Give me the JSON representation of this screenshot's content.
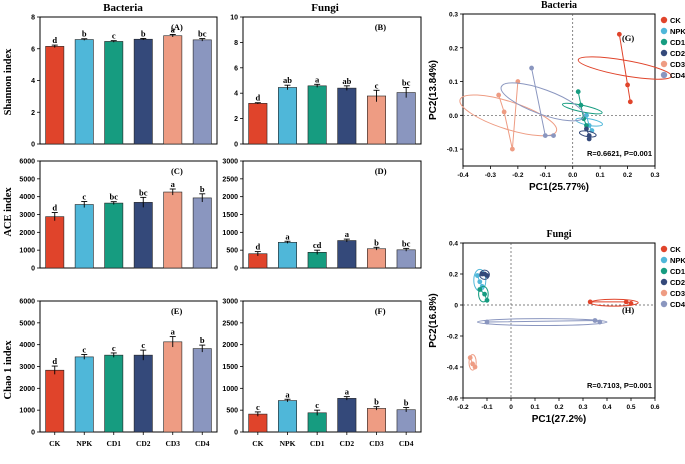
{
  "colors": {
    "CK": "#e0442b",
    "NPK": "#4fb7d9",
    "CD1": "#169c80",
    "CD2": "#34497a",
    "CD3": "#ee9c83",
    "CD4": "#8a96bf"
  },
  "column_titles": {
    "bacteria": "Bacteria",
    "fungi": "Fungi"
  },
  "row_labels": {
    "shannon": "Shannon index",
    "ace": "ACE index",
    "chao": "Chao 1 index"
  },
  "categories": [
    "CK",
    "NPK",
    "CD1",
    "CD2",
    "CD3",
    "CD4"
  ],
  "chart_data": [
    {
      "id": "A",
      "type": "bar",
      "panel_label": "(A)",
      "group": "Bacteria",
      "metric": "Shannon index",
      "categories": [
        "CK",
        "NPK",
        "CD1",
        "CD2",
        "CD3",
        "CD4"
      ],
      "values": [
        6.15,
        6.58,
        6.46,
        6.6,
        6.82,
        6.56
      ],
      "errors": [
        0.08,
        0.05,
        0.05,
        0.05,
        0.08,
        0.08
      ],
      "letters": [
        "d",
        "b",
        "c",
        "b",
        "a",
        "bc"
      ],
      "ylim": [
        0,
        8
      ],
      "yticks": [
        "0",
        "2",
        "4",
        "6",
        "8"
      ]
    },
    {
      "id": "B",
      "type": "bar",
      "panel_label": "(B)",
      "group": "Fungi",
      "metric": "Shannon index",
      "categories": [
        "CK",
        "NPK",
        "CD1",
        "CD2",
        "CD3",
        "CD4"
      ],
      "values": [
        3.2,
        4.45,
        4.58,
        4.4,
        3.78,
        4.05
      ],
      "errors": [
        0.05,
        0.18,
        0.12,
        0.18,
        0.45,
        0.4
      ],
      "letters": [
        "d",
        "ab",
        "a",
        "ab",
        "c",
        "bc"
      ],
      "ylim": [
        0,
        10
      ],
      "yticks": [
        "0",
        "2",
        "4",
        "6",
        "8",
        "10"
      ]
    },
    {
      "id": "C",
      "type": "bar",
      "panel_label": "(C)",
      "group": "Bacteria",
      "metric": "ACE index",
      "categories": [
        "CK",
        "NPK",
        "CD1",
        "CD2",
        "CD3",
        "CD4"
      ],
      "values": [
        2880,
        3560,
        3640,
        3680,
        4260,
        3930
      ],
      "errors": [
        230,
        170,
        80,
        280,
        170,
        230
      ],
      "letters": [
        "d",
        "c",
        "bc",
        "bc",
        "a",
        "b"
      ],
      "ylim": [
        0,
        6000
      ],
      "yticks": [
        "0",
        "1000",
        "2000",
        "3000",
        "4000",
        "5000",
        "6000"
      ]
    },
    {
      "id": "D",
      "type": "bar",
      "panel_label": "(D)",
      "group": "Fungi",
      "metric": "ACE index",
      "categories": [
        "CK",
        "NPK",
        "CD1",
        "CD2",
        "CD3",
        "CD4"
      ],
      "values": [
        400,
        720,
        440,
        770,
        540,
        510
      ],
      "errors": [
        60,
        30,
        60,
        40,
        40,
        40
      ],
      "letters": [
        "d",
        "a",
        "cd",
        "a",
        "b",
        "bc"
      ],
      "ylim": [
        0,
        3000
      ],
      "yticks": [
        "0",
        "500",
        "1000",
        "1500",
        "2000",
        "2500",
        "3000"
      ]
    },
    {
      "id": "E",
      "type": "bar",
      "panel_label": "(E)",
      "group": "Bacteria",
      "metric": "Chao 1 index",
      "categories": [
        "CK",
        "NPK",
        "CD1",
        "CD2",
        "CD3",
        "CD4"
      ],
      "values": [
        2830,
        3440,
        3520,
        3520,
        4130,
        3820
      ],
      "errors": [
        190,
        110,
        100,
        230,
        240,
        160
      ],
      "letters": [
        "d",
        "c",
        "c",
        "c",
        "a",
        "b"
      ],
      "ylim": [
        0,
        6000
      ],
      "yticks": [
        "0",
        "1000",
        "2000",
        "3000",
        "4000",
        "5000",
        "6000"
      ]
    },
    {
      "id": "F",
      "type": "bar",
      "panel_label": "(F)",
      "group": "Fungi",
      "metric": "Chao 1 index",
      "categories": [
        "CK",
        "NPK",
        "CD1",
        "CD2",
        "CD3",
        "CD4"
      ],
      "values": [
        410,
        720,
        440,
        770,
        540,
        510
      ],
      "errors": [
        50,
        30,
        60,
        40,
        40,
        50
      ],
      "letters": [
        "c",
        "a",
        "c",
        "a",
        "b",
        "b"
      ],
      "ylim": [
        0,
        3000
      ],
      "yticks": [
        "0",
        "500",
        "1000",
        "1500",
        "2000",
        "2500",
        "3000"
      ]
    },
    {
      "id": "G",
      "type": "scatter",
      "title": "Bacteria",
      "panel_label": "(G)",
      "xlabel": "PC1(25.77%)",
      "ylabel": "PC2(13.84%)",
      "xlim": [
        -0.4,
        0.3
      ],
      "ylim": [
        -0.15,
        0.3
      ],
      "xticks": [
        "-0.4",
        "-0.3",
        "-0.2",
        "-0.1",
        "0.0",
        "0.1",
        "0.2",
        "0.3"
      ],
      "yticks": [
        "-0.1",
        "0.0",
        "0.1",
        "0.2",
        "0.3"
      ],
      "stats": "R=0.6621, P=0.001",
      "legend": [
        "CK",
        "NPK",
        "CD1",
        "CD2",
        "CD3",
        "CD4"
      ],
      "series": [
        {
          "name": "CK",
          "points": [
            [
              0.17,
              0.24
            ],
            [
              0.2,
              0.09
            ],
            [
              0.21,
              0.04
            ]
          ],
          "ellipse": {
            "cx": 0.19,
            "cy": 0.14,
            "rx": 0.028,
            "ry": 0.14,
            "angle": 80
          }
        },
        {
          "name": "NPK",
          "points": [
            [
              0.05,
              0.0
            ],
            [
              0.06,
              -0.03
            ],
            [
              0.07,
              -0.045
            ]
          ],
          "ellipse": {
            "cx": 0.06,
            "cy": -0.02,
            "rx": 0.012,
            "ry": 0.04,
            "angle": 80
          }
        },
        {
          "name": "CD1",
          "points": [
            [
              0.02,
              0.07
            ],
            [
              0.03,
              0.03
            ],
            [
              0.04,
              -0.01
            ],
            [
              0.05,
              -0.03
            ]
          ],
          "ellipse": {
            "cx": 0.035,
            "cy": 0.02,
            "rx": 0.012,
            "ry": 0.06,
            "angle": 78
          }
        },
        {
          "name": "CD2",
          "points": [
            [
              0.05,
              -0.04
            ],
            [
              0.06,
              -0.06
            ],
            [
              0.06,
              -0.07
            ]
          ],
          "ellipse": {
            "cx": 0.055,
            "cy": -0.055,
            "rx": 0.01,
            "ry": 0.025,
            "angle": 80
          }
        },
        {
          "name": "CD3",
          "points": [
            [
              -0.27,
              0.06
            ],
            [
              -0.25,
              0.01
            ],
            [
              -0.22,
              -0.1
            ],
            [
              -0.2,
              0.1
            ]
          ],
          "ellipse": {
            "cx": -0.235,
            "cy": 0.0,
            "rx": 0.05,
            "ry": 0.15,
            "angle": 72
          }
        },
        {
          "name": "CD4",
          "points": [
            [
              -0.15,
              0.14
            ],
            [
              -0.1,
              -0.06
            ],
            [
              -0.07,
              -0.06
            ]
          ],
          "ellipse": {
            "cx": -0.11,
            "cy": 0.04,
            "rx": 0.045,
            "ry": 0.13,
            "angle": 70
          }
        }
      ]
    },
    {
      "id": "H",
      "type": "scatter",
      "title": "Fungi",
      "panel_label": "(H)",
      "xlabel": "PC1(27.2%)",
      "ylabel": "PC2(16.8%)",
      "xlim": [
        -0.2,
        0.6
      ],
      "ylim": [
        -0.6,
        0.4
      ],
      "xticks": [
        "-0.2",
        "-0.1",
        "0",
        "0.1",
        "0.2",
        "0.3",
        "0.4",
        "0.5",
        "0.6"
      ],
      "yticks": [
        "-0.6",
        "-0.4",
        "-0.2",
        "0",
        "0.2",
        "0.4"
      ],
      "stats": "R=0.7103, P=0.001",
      "legend": [
        "CK",
        "NPK",
        "CD1",
        "CD2",
        "CD3",
        "CD4"
      ],
      "series": [
        {
          "name": "CK",
          "points": [
            [
              0.33,
              0.02
            ],
            [
              0.48,
              0.02
            ],
            [
              0.5,
              0.01
            ]
          ],
          "ellipse": {
            "cx": 0.43,
            "cy": 0.015,
            "rx": 0.1,
            "ry": 0.022,
            "angle": 0
          }
        },
        {
          "name": "NPK",
          "points": [
            [
              -0.14,
              0.19
            ],
            [
              -0.13,
              0.15
            ],
            [
              -0.12,
              0.12
            ]
          ],
          "ellipse": {
            "cx": -0.13,
            "cy": 0.16,
            "rx": 0.025,
            "ry": 0.07,
            "angle": 0
          }
        },
        {
          "name": "CD1",
          "points": [
            [
              -0.13,
              0.1
            ],
            [
              -0.11,
              0.07
            ],
            [
              -0.1,
              0.03
            ]
          ],
          "ellipse": {
            "cx": -0.115,
            "cy": 0.07,
            "rx": 0.02,
            "ry": 0.05,
            "angle": 0
          }
        },
        {
          "name": "CD2",
          "points": [
            [
              -0.12,
              0.2
            ],
            [
              -0.11,
              0.2
            ],
            [
              -0.1,
              0.19
            ]
          ],
          "ellipse": {
            "cx": -0.11,
            "cy": 0.195,
            "rx": 0.02,
            "ry": 0.03,
            "angle": 0
          }
        },
        {
          "name": "CD3",
          "points": [
            [
              -0.17,
              -0.34
            ],
            [
              -0.16,
              -0.38
            ],
            [
              -0.15,
              -0.4
            ]
          ],
          "ellipse": {
            "cx": -0.16,
            "cy": -0.37,
            "rx": 0.015,
            "ry": 0.05,
            "angle": 0
          }
        },
        {
          "name": "CD4",
          "points": [
            [
              -0.1,
              -0.11
            ],
            [
              0.35,
              -0.1
            ],
            [
              0.37,
              -0.11
            ]
          ],
          "ellipse": {
            "cx": 0.13,
            "cy": -0.11,
            "rx": 0.27,
            "ry": 0.022,
            "angle": 0
          }
        }
      ]
    }
  ]
}
